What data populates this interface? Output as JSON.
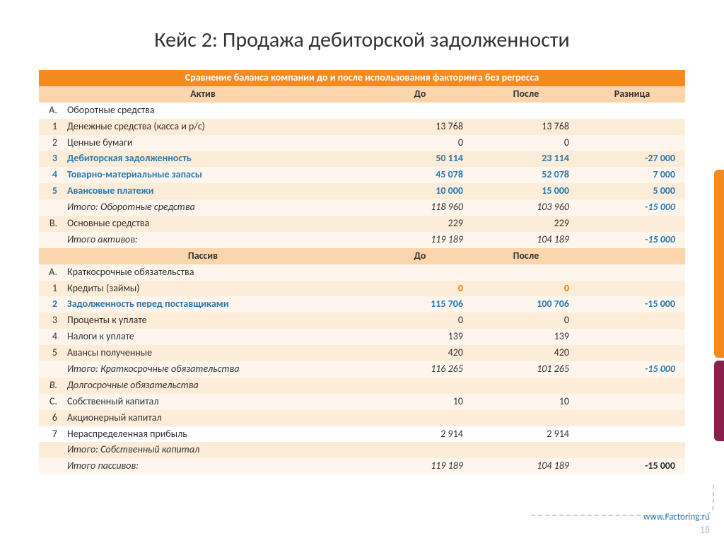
{
  "title": "Кейс 2: Продажа дебиторской задолженности",
  "table": {
    "top_header": "Сравнение баланса компании до и после использования  факторинга без регресса",
    "cols": {
      "asset": "Актив",
      "before": "До",
      "after": "После",
      "diff": "Разница"
    },
    "sec2": {
      "passive": "Пассив",
      "before": "До",
      "after": "После"
    },
    "rows": [
      {
        "idx": "A.",
        "name": "Оборотные средства",
        "b": "",
        "a": "",
        "d": "",
        "style": "plain",
        "stripe": "white"
      },
      {
        "idx": "1",
        "name": "Денежные средства (касса и р/с)",
        "b": "13 768",
        "a": "13 768",
        "d": "",
        "style": "plain",
        "stripe": "dark"
      },
      {
        "idx": "2",
        "name": "Ценные бумаги",
        "b": "0",
        "a": "0",
        "d": "",
        "style": "plain",
        "stripe": "light"
      },
      {
        "idx": "3",
        "name": "Дебиторская задолженность",
        "b": "50 114",
        "a": "23 114",
        "d": "-27 000",
        "style": "blue",
        "stripe": "dark"
      },
      {
        "idx": "4",
        "name": "Товарно-материальные запасы",
        "b": "45 078",
        "a": "52 078",
        "d": "7 000",
        "style": "blue",
        "stripe": "light"
      },
      {
        "idx": "5",
        "name": "Авансовые платежи",
        "b": "10 000",
        "a": "15 000",
        "d": "5 000",
        "style": "blue",
        "stripe": "dark"
      },
      {
        "idx": "",
        "name": "Итого: Оборотные средства",
        "b": "118 960",
        "a": "103 960",
        "d": "-15 000",
        "style": "subtotal",
        "stripe": "light"
      },
      {
        "idx": "B.",
        "name": "Основные средства",
        "b": "229",
        "a": "229",
        "d": "",
        "style": "plain",
        "stripe": "dark"
      },
      {
        "idx": "",
        "name": "Итого активов:",
        "b": "119 189",
        "a": "104 189",
        "d": "-15 000",
        "style": "subtotal",
        "stripe": "light"
      }
    ],
    "rows2": [
      {
        "idx": "A.",
        "name": "Краткосрочные обязательства",
        "b": "",
        "a": "",
        "d": "",
        "style": "plain",
        "stripe": "light"
      },
      {
        "idx": "1",
        "name": "Кредиты (займы)",
        "b": "0",
        "a": "0",
        "d": "",
        "style": "orangeval",
        "stripe": "dark"
      },
      {
        "idx": "2",
        "name": "Задолженность перед поставщиками",
        "b": "115 706",
        "a": "100 706",
        "d": "-15 000",
        "style": "blue",
        "stripe": "light"
      },
      {
        "idx": "3",
        "name": "Проценты к уплате",
        "b": "0",
        "a": "0",
        "d": "",
        "style": "plain",
        "stripe": "dark"
      },
      {
        "idx": "4",
        "name": "Налоги к уплате",
        "b": "139",
        "a": "139",
        "d": "",
        "style": "plain",
        "stripe": "light"
      },
      {
        "idx": "5",
        "name": "Авансы полученные",
        "b": "420",
        "a": "420",
        "d": "",
        "style": "plain",
        "stripe": "dark"
      },
      {
        "idx": "",
        "name": "Итого: Краткосрочные обязательства",
        "b": "116 265",
        "a": "101 265",
        "d": "-15 000",
        "style": "subtotal",
        "stripe": "light"
      },
      {
        "idx": "B.",
        "name": "Долгосрочные обязательства",
        "b": "",
        "a": "",
        "d": "",
        "style": "italic",
        "stripe": "dark"
      },
      {
        "idx": "C.",
        "name": "Собственный капитал",
        "b": "10",
        "a": "10",
        "d": "",
        "style": "plain",
        "stripe": "light"
      },
      {
        "idx": "6",
        "name": "Акционерный капитал",
        "b": "",
        "a": "",
        "d": "",
        "style": "plain",
        "stripe": "dark"
      },
      {
        "idx": "7",
        "name": "Нераспределенная прибыль",
        "b": "2 914",
        "a": "2 914",
        "d": "",
        "style": "plain",
        "stripe": "white"
      },
      {
        "idx": "",
        "name": "Итого: Собственный капитал",
        "b": "",
        "a": "",
        "d": "",
        "style": "subtotal",
        "stripe": "dark"
      },
      {
        "idx": "",
        "name": "Итого пассивов:",
        "b": "119 189",
        "a": "104 189",
        "d": "-15 000",
        "style": "total",
        "stripe": "light"
      }
    ]
  },
  "footer": {
    "url": "www.Factoring.ru",
    "page": "18"
  },
  "colors": {
    "orange": "#f58b1f",
    "light_orange": "#fbd6ac",
    "stripe_dark": "#fdecd8",
    "stripe_light": "#fef6ec",
    "blue": "#2a7ab0",
    "maroon": "#8b1e4b"
  }
}
